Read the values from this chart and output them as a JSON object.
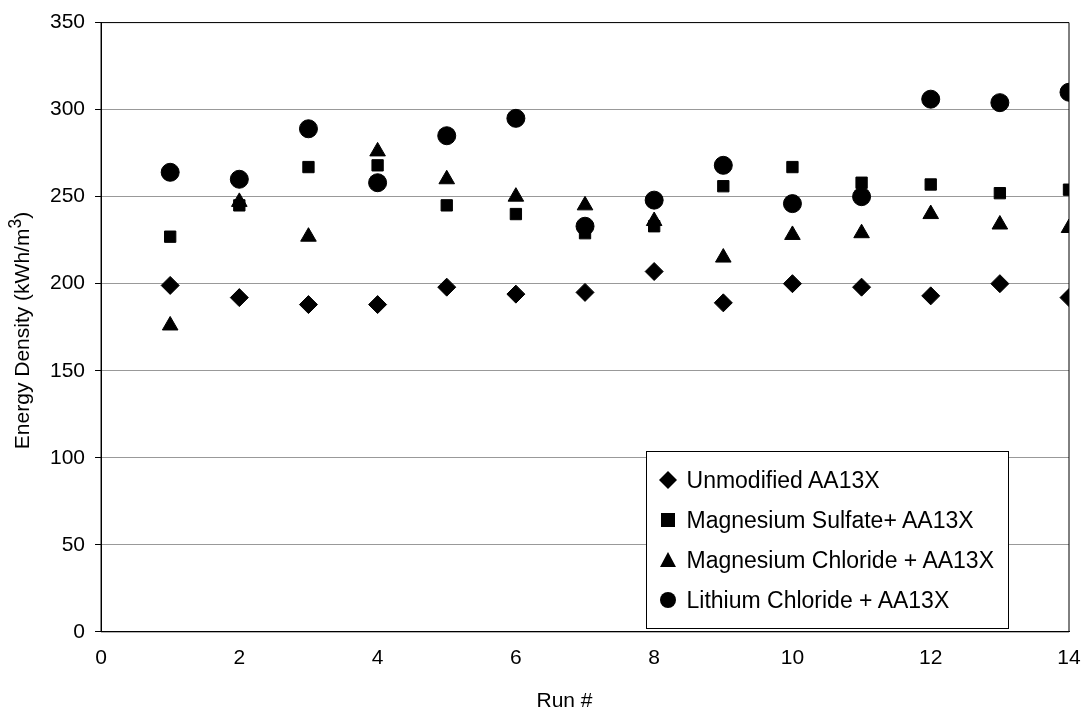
{
  "chart_data": {
    "type": "scatter",
    "xlabel": "Run #",
    "ylabel": "Energy Density (kWh/m$^{3}$)",
    "x": [
      1,
      2,
      3,
      4,
      5,
      6,
      7,
      8,
      9,
      10,
      11,
      12,
      13,
      14
    ],
    "series": [
      {
        "name": "Unmodified AA13X",
        "color": "#000000",
        "marker": "diamond",
        "values": [
          199,
          192,
          188,
          188,
          198,
          194,
          195,
          207,
          189,
          200,
          198,
          193,
          200,
          192
        ]
      },
      {
        "name": "Magnesium Sulfate+ AA13X",
        "color": "#000000",
        "marker": "square",
        "values": [
          227,
          245,
          267,
          268,
          245,
          240,
          229,
          233,
          256,
          267,
          258,
          257,
          252,
          254
        ]
      },
      {
        "name": "Magnesium Chloride + AA13X",
        "color": "#000000",
        "marker": "triangle",
        "values": [
          176,
          247,
          227,
          276,
          260,
          250,
          245,
          236,
          215,
          228,
          229,
          240,
          234,
          232
        ]
      },
      {
        "name": "Lithium Chloride + AA13X",
        "color": "#000000",
        "marker": "circle",
        "values": [
          264,
          260,
          289,
          258,
          285,
          295,
          233,
          248,
          268,
          246,
          250,
          306,
          304,
          310
        ]
      }
    ],
    "xlim": [
      0,
      14
    ],
    "xticks": [
      0,
      2,
      4,
      6,
      8,
      10,
      12,
      14
    ],
    "ylim": [
      0,
      350
    ],
    "yticks": [
      0,
      50,
      100,
      150,
      200,
      250,
      300,
      350
    ],
    "grid": "y",
    "legend": "bottom right"
  }
}
